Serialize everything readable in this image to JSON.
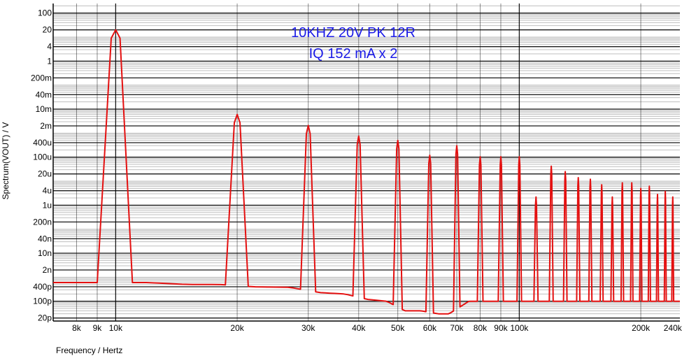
{
  "chart_data": {
    "type": "line",
    "title": "",
    "xlabel": "Frequency / Hertz",
    "ylabel": "Spectrum(VOUT) / V",
    "x_scale": "log",
    "y_scale": "log",
    "xlim": [
      7000,
      250000
    ],
    "ylim": [
      1.5e-11,
      250
    ],
    "grid": true,
    "colors": {
      "trace": "#e41010",
      "annotation": "#1a1ae6",
      "grid": "#000000"
    },
    "annotations": [
      "10KHZ 20V PK 12R",
      "IQ 152 mA x 2"
    ],
    "x_ticks": [
      {
        "value": 8000,
        "label": "8k"
      },
      {
        "value": 9000,
        "label": "9k"
      },
      {
        "value": 10000,
        "label": "10k"
      },
      {
        "value": 20000,
        "label": "20k"
      },
      {
        "value": 30000,
        "label": "30k"
      },
      {
        "value": 40000,
        "label": "40k"
      },
      {
        "value": 50000,
        "label": "50k"
      },
      {
        "value": 60000,
        "label": "60k"
      },
      {
        "value": 70000,
        "label": "70k"
      },
      {
        "value": 80000,
        "label": "80k"
      },
      {
        "value": 90000,
        "label": "90k"
      },
      {
        "value": 100000,
        "label": "100k"
      },
      {
        "value": 200000,
        "label": "200k"
      },
      {
        "value": 240000,
        "label": "240k"
      }
    ],
    "y_ticks": [
      {
        "value": 100,
        "label": "100"
      },
      {
        "value": 20,
        "label": "20"
      },
      {
        "value": 4,
        "label": "4"
      },
      {
        "value": 1,
        "label": "1"
      },
      {
        "value": 0.2,
        "label": "200m"
      },
      {
        "value": 0.04,
        "label": "40m"
      },
      {
        "value": 0.01,
        "label": "10m"
      },
      {
        "value": 0.002,
        "label": "2m"
      },
      {
        "value": 0.0004,
        "label": "400u"
      },
      {
        "value": 0.0001,
        "label": "100u"
      },
      {
        "value": 2e-05,
        "label": "20u"
      },
      {
        "value": 4e-06,
        "label": "4u"
      },
      {
        "value": 1e-06,
        "label": "1u"
      },
      {
        "value": 2e-07,
        "label": "200n"
      },
      {
        "value": 4e-08,
        "label": "40n"
      },
      {
        "value": 1e-08,
        "label": "10n"
      },
      {
        "value": 2e-09,
        "label": "2n"
      },
      {
        "value": 4e-10,
        "label": "400p"
      },
      {
        "value": 1e-10,
        "label": "100p"
      },
      {
        "value": 2e-11,
        "label": "20p"
      }
    ],
    "series": [
      {
        "harmonics": [
          {
            "f": 10000,
            "peak": 20
          },
          {
            "f": 20000,
            "peak": 0.006
          },
          {
            "f": 30000,
            "peak": 0.0021
          },
          {
            "f": 40000,
            "peak": 0.00075
          },
          {
            "f": 50000,
            "peak": 0.0005
          },
          {
            "f": 60000,
            "peak": 0.00012
          },
          {
            "f": 70000,
            "peak": 0.0003
          },
          {
            "f": 80000,
            "peak": 0.000105
          },
          {
            "f": 90000,
            "peak": 0.000105
          },
          {
            "f": 100000,
            "peak": 0.000105
          },
          {
            "f": 110000,
            "peak": 2.2e-06
          },
          {
            "f": 120000,
            "peak": 4.2e-05
          },
          {
            "f": 130000,
            "peak": 2.5e-05
          },
          {
            "f": 140000,
            "peak": 1.4e-05
          },
          {
            "f": 150000,
            "peak": 1.2e-05
          },
          {
            "f": 160000,
            "peak": 7.1e-06
          },
          {
            "f": 170000,
            "peak": 2.2e-06
          },
          {
            "f": 180000,
            "peak": 8.5e-06
          },
          {
            "f": 190000,
            "peak": 8.5e-06
          },
          {
            "f": 200000,
            "peak": 5e-06
          },
          {
            "f": 210000,
            "peak": 6.2e-06
          },
          {
            "f": 220000,
            "peak": 2.8e-06
          },
          {
            "f": 230000,
            "peak": 3.8e-06
          },
          {
            "f": 240000,
            "peak": 2.2e-06
          }
        ],
        "floor": [
          {
            "f": 7000,
            "v": 6e-10
          },
          {
            "f": 8000,
            "v": 6e-10
          },
          {
            "f": 12000,
            "v": 6e-10
          },
          {
            "f": 15000,
            "v": 5e-10
          },
          {
            "f": 18000,
            "v": 5e-10
          },
          {
            "f": 22000,
            "v": 4e-10
          },
          {
            "f": 27000,
            "v": 3.8e-10
          },
          {
            "f": 32000,
            "v": 2.3e-10
          },
          {
            "f": 37000,
            "v": 2e-10
          },
          {
            "f": 42000,
            "v": 1.2e-10
          },
          {
            "f": 47000,
            "v": 1e-10
          },
          {
            "f": 52000,
            "v": 4e-11
          },
          {
            "f": 57000,
            "v": 4e-11
          },
          {
            "f": 63000,
            "v": 3e-11
          },
          {
            "f": 67000,
            "v": 3e-11
          },
          {
            "f": 75000,
            "v": 1e-10
          },
          {
            "f": 85000,
            "v": 1e-10
          },
          {
            "f": 95000,
            "v": 1e-10
          },
          {
            "f": 105000,
            "v": 1e-10
          },
          {
            "f": 250000,
            "v": 1e-10
          }
        ]
      }
    ]
  }
}
